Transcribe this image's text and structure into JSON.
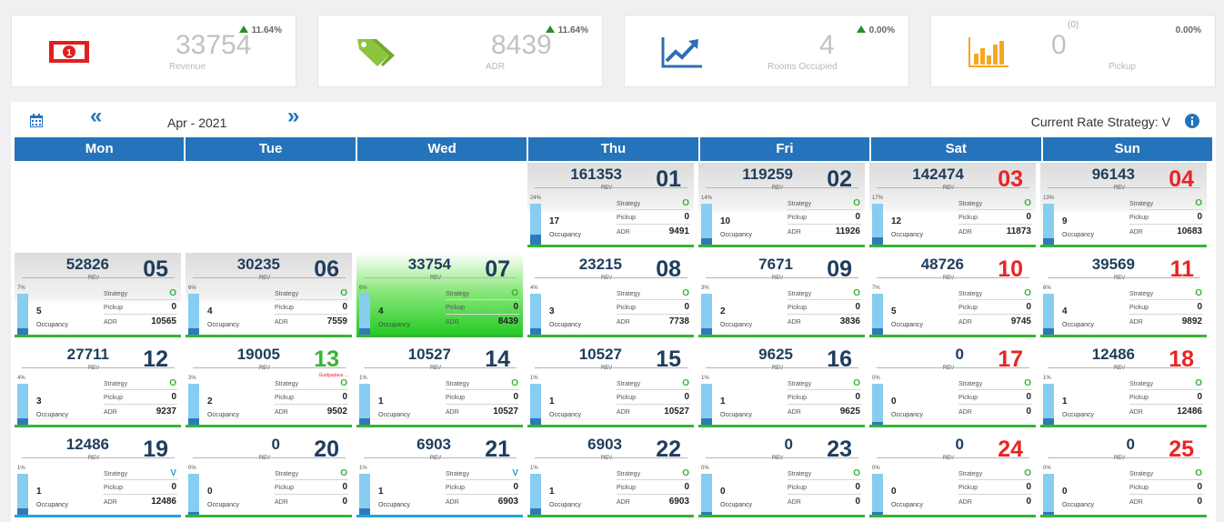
{
  "kpis": [
    {
      "value": "33754",
      "sub": "",
      "label": "Revenue",
      "pct": "11.64%",
      "trend": "up",
      "icon": "banknote-icon"
    },
    {
      "value": "8439",
      "sub": "",
      "label": "ADR",
      "pct": "11.64%",
      "trend": "up",
      "icon": "price-tag-icon"
    },
    {
      "value": "4",
      "sub": "",
      "label": "Rooms Occupied",
      "pct": "0.00%",
      "trend": "up",
      "icon": "line-chart-icon"
    },
    {
      "value": "0",
      "sub": "(0)",
      "label": "Pickup",
      "pct": "0.00%",
      "trend": "none",
      "icon": "bar-chart-icon"
    }
  ],
  "calendar": {
    "month_label": "Apr - 2021",
    "strategy_label": "Current Rate Strategy: V",
    "weekdays": [
      "Mon",
      "Tue",
      "Wed",
      "Thu",
      "Fri",
      "Sat",
      "Sun"
    ],
    "labels": {
      "rev": "REV",
      "strategy": "Strategy",
      "pickup": "Pickup",
      "occupancy": "Occupancy",
      "adr": "ADR"
    },
    "colors": {
      "header": "#2573bb",
      "weekend_day": "#ea2424",
      "highlight_day": "#35b535",
      "strategy_o": "#35b535",
      "strategy_v": "#24a3dc"
    }
  },
  "days": [
    {
      "day": "01",
      "rev": "161353",
      "pct": "24%",
      "fill": 0.24,
      "occ": "17",
      "strategy": "O",
      "pickup": "0",
      "adr": "9491",
      "weekend": false,
      "style": "gray"
    },
    {
      "day": "02",
      "rev": "119259",
      "pct": "14%",
      "fill": 0.14,
      "occ": "10",
      "strategy": "O",
      "pickup": "0",
      "adr": "11926",
      "weekend": false,
      "style": "gray"
    },
    {
      "day": "03",
      "rev": "142474",
      "pct": "17%",
      "fill": 0.17,
      "occ": "12",
      "strategy": "O",
      "pickup": "0",
      "adr": "11873",
      "weekend": true,
      "style": "gray"
    },
    {
      "day": "04",
      "rev": "96143",
      "pct": "13%",
      "fill": 0.13,
      "occ": "9",
      "strategy": "O",
      "pickup": "0",
      "adr": "10683",
      "weekend": true,
      "style": "gray"
    },
    {
      "day": "05",
      "rev": "52826",
      "pct": "7%",
      "fill": 0.07,
      "occ": "5",
      "strategy": "O",
      "pickup": "0",
      "adr": "10565",
      "weekend": false,
      "style": "gray"
    },
    {
      "day": "06",
      "rev": "30235",
      "pct": "6%",
      "fill": 0.06,
      "occ": "4",
      "strategy": "O",
      "pickup": "0",
      "adr": "7559",
      "weekend": false,
      "style": "gray"
    },
    {
      "day": "07",
      "rev": "33754",
      "pct": "6%",
      "fill": 0.06,
      "occ": "4",
      "strategy": "O",
      "pickup": "0",
      "adr": "8439",
      "weekend": false,
      "style": "green"
    },
    {
      "day": "08",
      "rev": "23215",
      "pct": "4%",
      "fill": 0.04,
      "occ": "3",
      "strategy": "O",
      "pickup": "0",
      "adr": "7738",
      "weekend": false,
      "style": ""
    },
    {
      "day": "09",
      "rev": "7671",
      "pct": "3%",
      "fill": 0.03,
      "occ": "2",
      "strategy": "O",
      "pickup": "0",
      "adr": "3836",
      "weekend": false,
      "style": ""
    },
    {
      "day": "10",
      "rev": "48726",
      "pct": "7%",
      "fill": 0.07,
      "occ": "5",
      "strategy": "O",
      "pickup": "0",
      "adr": "9745",
      "weekend": true,
      "style": ""
    },
    {
      "day": "11",
      "rev": "39569",
      "pct": "6%",
      "fill": 0.06,
      "occ": "4",
      "strategy": "O",
      "pickup": "0",
      "adr": "9892",
      "weekend": true,
      "style": ""
    },
    {
      "day": "12",
      "rev": "27711",
      "pct": "4%",
      "fill": 0.04,
      "occ": "3",
      "strategy": "O",
      "pickup": "0",
      "adr": "9237",
      "weekend": false,
      "style": ""
    },
    {
      "day": "13",
      "rev": "19005",
      "pct": "3%",
      "fill": 0.03,
      "occ": "2",
      "strategy": "O",
      "pickup": "0",
      "adr": "9502",
      "weekend": false,
      "style": "",
      "highlight": true,
      "note": "Gudipadava ..."
    },
    {
      "day": "14",
      "rev": "10527",
      "pct": "1%",
      "fill": 0.01,
      "occ": "1",
      "strategy": "O",
      "pickup": "0",
      "adr": "10527",
      "weekend": false,
      "style": ""
    },
    {
      "day": "15",
      "rev": "10527",
      "pct": "1%",
      "fill": 0.01,
      "occ": "1",
      "strategy": "O",
      "pickup": "0",
      "adr": "10527",
      "weekend": false,
      "style": ""
    },
    {
      "day": "16",
      "rev": "9625",
      "pct": "1%",
      "fill": 0.01,
      "occ": "1",
      "strategy": "O",
      "pickup": "0",
      "adr": "9625",
      "weekend": false,
      "style": ""
    },
    {
      "day": "17",
      "rev": "0",
      "pct": "0%",
      "fill": 0,
      "occ": "0",
      "strategy": "O",
      "pickup": "0",
      "adr": "0",
      "weekend": true,
      "style": ""
    },
    {
      "day": "18",
      "rev": "12486",
      "pct": "1%",
      "fill": 0.01,
      "occ": "1",
      "strategy": "O",
      "pickup": "0",
      "adr": "12486",
      "weekend": true,
      "style": ""
    },
    {
      "day": "19",
      "rev": "12486",
      "pct": "1%",
      "fill": 0.01,
      "occ": "1",
      "strategy": "V",
      "pickup": "0",
      "adr": "12486",
      "weekend": false,
      "style": "blue"
    },
    {
      "day": "20",
      "rev": "0",
      "pct": "0%",
      "fill": 0,
      "occ": "0",
      "strategy": "O",
      "pickup": "0",
      "adr": "0",
      "weekend": false,
      "style": ""
    },
    {
      "day": "21",
      "rev": "6903",
      "pct": "1%",
      "fill": 0.01,
      "occ": "1",
      "strategy": "V",
      "pickup": "0",
      "adr": "6903",
      "weekend": false,
      "style": "blue"
    },
    {
      "day": "22",
      "rev": "6903",
      "pct": "1%",
      "fill": 0.01,
      "occ": "1",
      "strategy": "O",
      "pickup": "0",
      "adr": "6903",
      "weekend": false,
      "style": ""
    },
    {
      "day": "23",
      "rev": "0",
      "pct": "0%",
      "fill": 0,
      "occ": "0",
      "strategy": "O",
      "pickup": "0",
      "adr": "0",
      "weekend": false,
      "style": ""
    },
    {
      "day": "24",
      "rev": "0",
      "pct": "0%",
      "fill": 0,
      "occ": "0",
      "strategy": "O",
      "pickup": "0",
      "adr": "0",
      "weekend": true,
      "style": ""
    },
    {
      "day": "25",
      "rev": "0",
      "pct": "0%",
      "fill": 0,
      "occ": "0",
      "strategy": "O",
      "pickup": "0",
      "adr": "0",
      "weekend": true,
      "style": ""
    }
  ]
}
